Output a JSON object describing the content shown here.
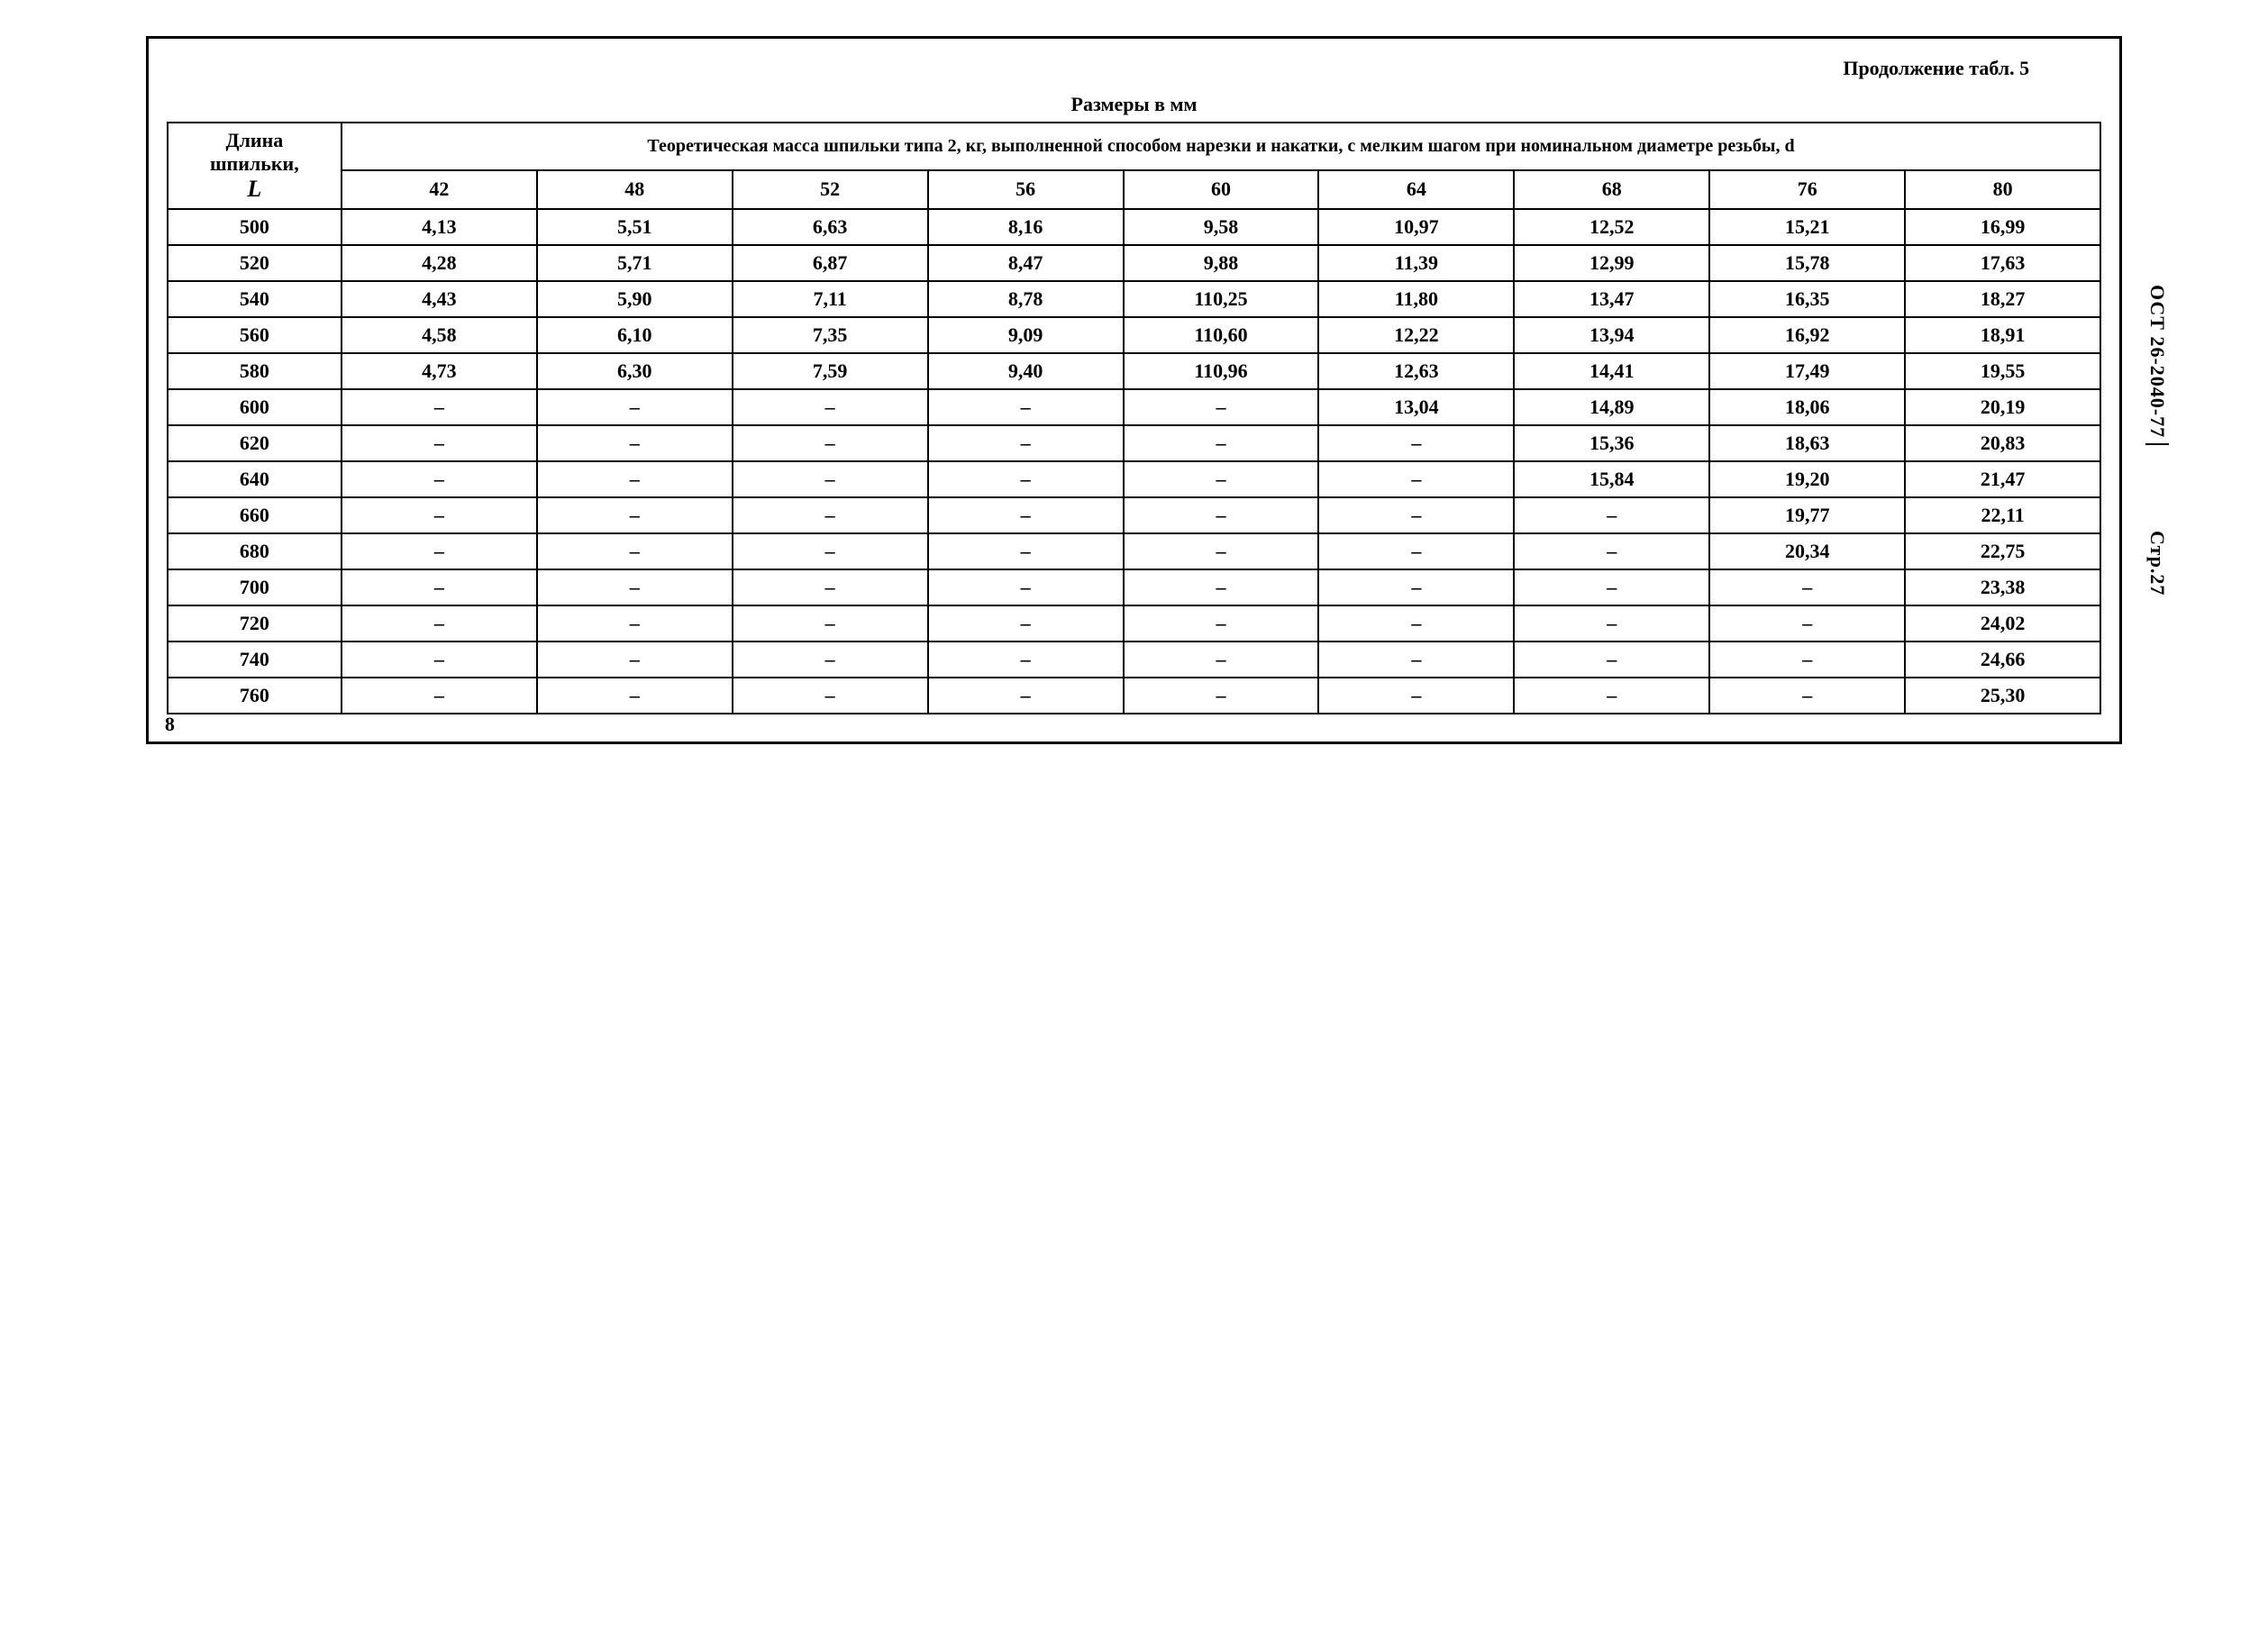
{
  "continuation": "Продолжение табл. 5",
  "caption": "Размеры в мм",
  "side1": "ОСТ 26-2040-77",
  "side2": "Стр.27",
  "bottomNote": "8",
  "header": {
    "col0_line1": "Длина",
    "col0_line2": "шпильки,",
    "col0_line3": "L",
    "merged": "Теоретическая масса шпильки типа 2, кг, выполненной способом нарезки и накатки, с мелким шагом при номинальном диаметре резьбы, d"
  },
  "diamCols": [
    "42",
    "48",
    "52",
    "56",
    "60",
    "64",
    "68",
    "76",
    "80"
  ],
  "rows": [
    {
      "L": "500",
      "v": [
        "4,13",
        "5,51",
        "6,63",
        "8,16",
        "9,58",
        "10,97",
        "12,52",
        "15,21",
        "16,99"
      ]
    },
    {
      "L": "520",
      "v": [
        "4,28",
        "5,71",
        "6,87",
        "8,47",
        "9,88",
        "11,39",
        "12,99",
        "15,78",
        "17,63"
      ]
    },
    {
      "L": "540",
      "v": [
        "4,43",
        "5,90",
        "7,11",
        "8,78",
        "110,25",
        "11,80",
        "13,47",
        "16,35",
        "18,27"
      ]
    },
    {
      "L": "560",
      "v": [
        "4,58",
        "6,10",
        "7,35",
        "9,09",
        "110,60",
        "12,22",
        "13,94",
        "16,92",
        "18,91"
      ]
    },
    {
      "L": "580",
      "v": [
        "4,73",
        "6,30",
        "7,59",
        "9,40",
        "110,96",
        "12,63",
        "14,41",
        "17,49",
        "19,55"
      ]
    },
    {
      "L": "600",
      "v": [
        "–",
        "–",
        "–",
        "–",
        "–",
        "13,04",
        "14,89",
        "18,06",
        "20,19"
      ]
    },
    {
      "L": "620",
      "v": [
        "–",
        "–",
        "–",
        "–",
        "–",
        "–",
        "15,36",
        "18,63",
        "20,83"
      ]
    },
    {
      "L": "640",
      "v": [
        "–",
        "–",
        "–",
        "–",
        "–",
        "–",
        "15,84",
        "19,20",
        "21,47"
      ]
    },
    {
      "L": "660",
      "v": [
        "–",
        "–",
        "–",
        "–",
        "–",
        "–",
        "–",
        "19,77",
        "22,11"
      ]
    },
    {
      "L": "680",
      "v": [
        "–",
        "–",
        "–",
        "–",
        "–",
        "–",
        "–",
        "20,34",
        "22,75"
      ]
    },
    {
      "L": "700",
      "v": [
        "–",
        "–",
        "–",
        "–",
        "–",
        "–",
        "–",
        "–",
        "23,38"
      ]
    },
    {
      "L": "720",
      "v": [
        "–",
        "–",
        "–",
        "–",
        "–",
        "–",
        "–",
        "–",
        "24,02"
      ]
    },
    {
      "L": "740",
      "v": [
        "–",
        "–",
        "–",
        "–",
        "–",
        "–",
        "–",
        "–",
        "24,66"
      ]
    },
    {
      "L": "760",
      "v": [
        "–",
        "–",
        "–",
        "–",
        "–",
        "–",
        "–",
        "–",
        "25,30"
      ]
    }
  ]
}
